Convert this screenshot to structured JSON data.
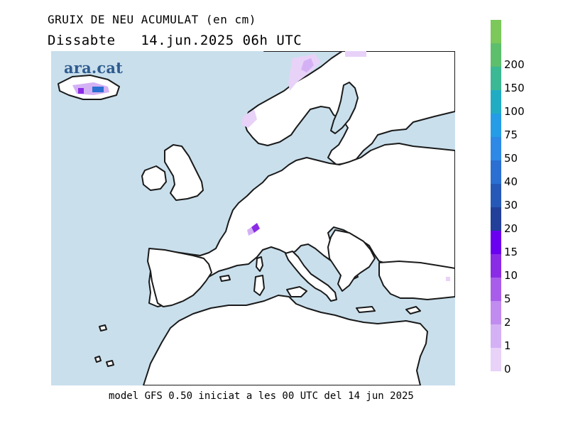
{
  "title": "GRUIX DE NEU ACUMULAT (en cm)",
  "subtitle": "Dissabte   14.jun.2025 06h UTC",
  "logo_text": "ara.cat",
  "footer": "model GFS 0.50 iniciat a les 00 UTC del 14 jun 2025",
  "colors": {
    "sea": "#c9dfec",
    "land": "#ffffff",
    "coast": "#1a1a1a"
  },
  "legend": {
    "levels": [
      {
        "label": "0",
        "color": "#e8d2f8"
      },
      {
        "label": "1",
        "color": "#d4b1f4"
      },
      {
        "label": "2",
        "color": "#c08cf0"
      },
      {
        "label": "5",
        "color": "#a85eeb"
      },
      {
        "label": "10",
        "color": "#8a2ce6"
      },
      {
        "label": "15",
        "color": "#6a00f0"
      },
      {
        "label": "20",
        "color": "#223f9a"
      },
      {
        "label": "30",
        "color": "#2658b8"
      },
      {
        "label": "40",
        "color": "#2a6fd1"
      },
      {
        "label": "50",
        "color": "#2e88e6"
      },
      {
        "label": "75",
        "color": "#259ce6"
      },
      {
        "label": "100",
        "color": "#21acc4"
      },
      {
        "label": "150",
        "color": "#3bb894"
      },
      {
        "label": "200",
        "color": "#5dbe6c"
      },
      {
        "label": "",
        "color": "#7cc85a"
      }
    ]
  }
}
